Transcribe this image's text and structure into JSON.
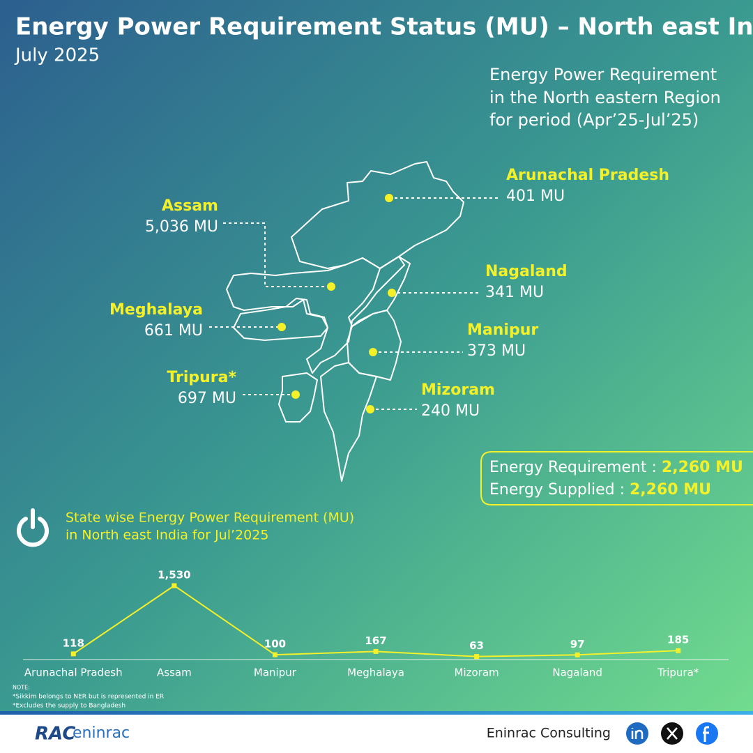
{
  "header": {
    "title": "Energy Power Requirement Status (MU) – North east India",
    "subtitle": "July 2025"
  },
  "map": {
    "caption": [
      "Energy Power Requirement",
      "in the North eastern Region",
      "for period (Apr’25-Jul’25)"
    ],
    "states": [
      {
        "name": "Arunachal Pradesh",
        "value": "401 MU"
      },
      {
        "name": "Assam",
        "value": "5,036 MU"
      },
      {
        "name": "Nagaland",
        "value": "341 MU"
      },
      {
        "name": "Meghalaya",
        "value": "661 MU"
      },
      {
        "name": "Manipur",
        "value": "373 MU"
      },
      {
        "name": "Tripura*",
        "value": "697 MU"
      },
      {
        "name": "Mizoram",
        "value": "240 MU"
      }
    ]
  },
  "summary": [
    {
      "label": "Energy Requirement :",
      "value": "2,260 MU"
    },
    {
      "label": "Energy Supplied :",
      "value": "2,260 MU"
    }
  ],
  "chart_data": {
    "type": "line",
    "title": [
      "State wise Energy Power Requirement (MU)",
      "in North east India for Jul’2025"
    ],
    "categories": [
      "Arunachal Pradesh",
      "Assam",
      "Manipur",
      "Meghalaya",
      "Mizoram",
      "Nagaland",
      "Tripura*"
    ],
    "values": [
      118,
      1530,
      100,
      167,
      63,
      97,
      185
    ],
    "value_labels": [
      "118",
      "1,530",
      "100",
      "167",
      "63",
      "97",
      "185"
    ],
    "color": "#f4f02a"
  },
  "notes": [
    "NOTE:",
    "*Sikkim belongs to NER but is represented in ER",
    "*Excludes the supply to Bangladesh"
  ],
  "footer": {
    "logo": "RAC",
    "logo_text": "eninrac",
    "company": "Eninrac Consulting"
  }
}
